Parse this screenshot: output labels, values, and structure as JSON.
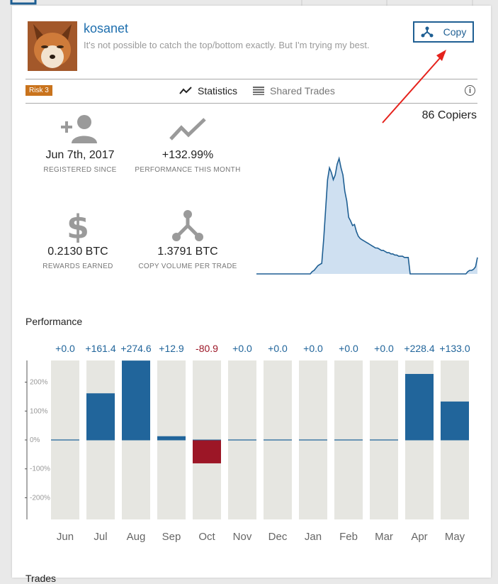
{
  "profile": {
    "username": "kosanet",
    "tagline": "It's not possible to catch the top/bottom exactly. But I'm trying my best.",
    "copy_button_label": "Copy"
  },
  "tabs": {
    "risk_badge": "Risk 3",
    "statistics": "Statistics",
    "shared_trades": "Shared Trades"
  },
  "copiers": "86 Copiers",
  "stats": [
    {
      "value": "Jun 7th, 2017",
      "label": "REGISTERED SINCE",
      "icon": "add-user-icon"
    },
    {
      "value": "+132.99%",
      "label": "PERFORMANCE THIS MONTH",
      "icon": "trend-line-icon"
    },
    {
      "value": "0.2130 BTC",
      "label": "REWARDS EARNED",
      "icon": "dollar-icon"
    },
    {
      "value": "1.3791 BTC",
      "label": "COPY VOLUME PER TRADE",
      "icon": "copy-network-icon"
    }
  ],
  "sparkline": {
    "values": [
      0,
      0,
      0,
      0,
      0,
      0,
      0,
      0,
      0,
      0,
      0,
      0,
      0,
      0,
      0,
      0,
      0,
      0,
      0,
      0,
      0,
      0,
      0,
      0,
      0,
      0,
      0,
      0,
      0,
      0.02,
      0.03,
      0.05,
      0.07,
      0.08,
      0.09,
      0.3,
      0.55,
      0.8,
      0.9,
      0.86,
      0.8,
      0.84,
      0.93,
      0.98,
      0.9,
      0.84,
      0.7,
      0.62,
      0.48,
      0.45,
      0.41,
      0.42,
      0.36,
      0.32,
      0.3,
      0.29,
      0.28,
      0.27,
      0.26,
      0.25,
      0.24,
      0.23,
      0.22,
      0.22,
      0.21,
      0.2,
      0.2,
      0.19,
      0.18,
      0.18,
      0.17,
      0.17,
      0.16,
      0.16,
      0.15,
      0.15,
      0.15,
      0.14,
      0.14,
      0.14,
      0,
      0,
      0,
      0,
      0,
      0,
      0,
      0,
      0,
      0,
      0,
      0,
      0,
      0,
      0,
      0,
      0,
      0,
      0,
      0,
      0,
      0,
      0,
      0,
      0,
      0,
      0,
      0,
      0,
      0,
      0.02,
      0.03,
      0.03,
      0.04,
      0.06,
      0.14
    ]
  },
  "colors": {
    "accent": "#1f5f93",
    "positive_bar": "#21659b",
    "negative_bar": "#9c1626",
    "bar_background": "#e6e6e1",
    "risk_badge": "#c9731c",
    "arrow": "#e5221c"
  },
  "performance_title": "Performance",
  "chart_data": {
    "type": "bar",
    "categories": [
      "Jun",
      "Jul",
      "Aug",
      "Sep",
      "Oct",
      "Nov",
      "Dec",
      "Jan",
      "Feb",
      "Mar",
      "Apr",
      "May"
    ],
    "values": [
      0.0,
      161.4,
      274.6,
      12.9,
      -80.9,
      0.0,
      0.0,
      0.0,
      0.0,
      0.0,
      228.4,
      133.0
    ],
    "value_labels": [
      "+0.0",
      "+161.4",
      "+274.6",
      "+12.9",
      "-80.9",
      "+0.0",
      "+0.0",
      "+0.0",
      "+0.0",
      "+0.0",
      "+228.4",
      "+133.0"
    ],
    "yticks": [
      "200%",
      "100%",
      "0%",
      "-100%",
      "-200%"
    ],
    "ytick_values": [
      200,
      100,
      0,
      -100,
      -200
    ],
    "ylim": [
      -275,
      275
    ],
    "title": "",
    "xlabel": "",
    "ylabel": ""
  },
  "trades_heading": "Trades"
}
